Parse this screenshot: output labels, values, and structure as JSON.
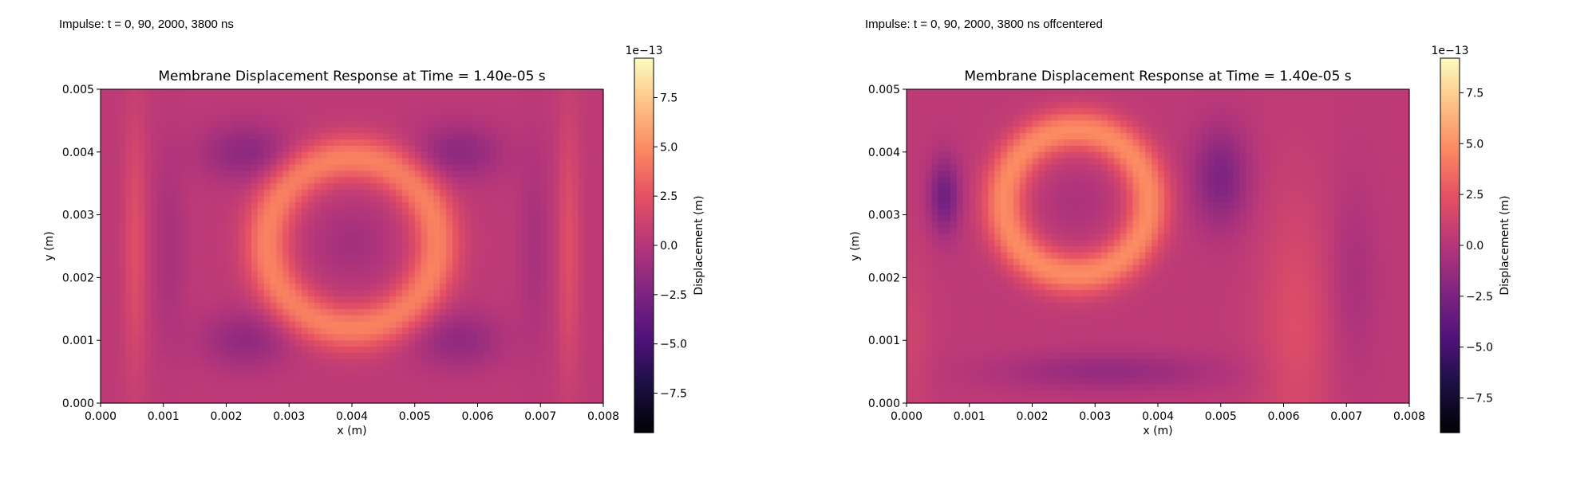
{
  "panels": [
    {
      "caption": "Impulse: t = 0, 90, 2000, 3800 ns",
      "chart_data": {
        "type": "heatmap",
        "title": "Membrane Displacement Response at Time = 1.40e-05 s",
        "xlabel": "x (m)",
        "ylabel": "y (m)",
        "xlim": [
          0.0,
          0.008
        ],
        "ylim": [
          0.0,
          0.005
        ],
        "x_ticks": [
          "0.000",
          "0.001",
          "0.002",
          "0.003",
          "0.004",
          "0.005",
          "0.006",
          "0.007",
          "0.008"
        ],
        "y_ticks": [
          "0.000",
          "0.001",
          "0.002",
          "0.003",
          "0.004",
          "0.005"
        ],
        "colormap": "magma",
        "colorbar": {
          "label": "Displacement (m)",
          "offset_text": "1e−13",
          "range": [
            -9.5,
            9.5
          ],
          "ticks": [
            "−7.5",
            "−5.0",
            "−2.5",
            "0.0",
            "2.5",
            "5.0",
            "7.5"
          ],
          "tick_values": [
            -7.5,
            -5.0,
            -2.5,
            0.0,
            2.5,
            5.0,
            7.5
          ]
        },
        "pattern": "centered"
      }
    },
    {
      "caption": "Impulse: t = 0, 90, 2000, 3800 ns offcentered",
      "chart_data": {
        "type": "heatmap",
        "title": "Membrane Displacement Response at Time = 1.40e-05 s",
        "xlabel": "x (m)",
        "ylabel": "y (m)",
        "xlim": [
          0.0,
          0.008
        ],
        "ylim": [
          0.0,
          0.005
        ],
        "x_ticks": [
          "0.000",
          "0.001",
          "0.002",
          "0.003",
          "0.004",
          "0.005",
          "0.006",
          "0.007",
          "0.008"
        ],
        "y_ticks": [
          "0.000",
          "0.001",
          "0.002",
          "0.003",
          "0.004",
          "0.005"
        ],
        "colormap": "magma",
        "colorbar": {
          "label": "Displacement (m)",
          "offset_text": "1e−13",
          "range": [
            -9.2,
            9.2
          ],
          "ticks": [
            "−7.5",
            "−5.0",
            "−2.5",
            "0.0",
            "2.5",
            "5.0",
            "7.5"
          ],
          "tick_values": [
            -7.5,
            -5.0,
            -2.5,
            0.0,
            2.5,
            5.0,
            7.5
          ]
        },
        "pattern": "offcentered"
      }
    }
  ]
}
